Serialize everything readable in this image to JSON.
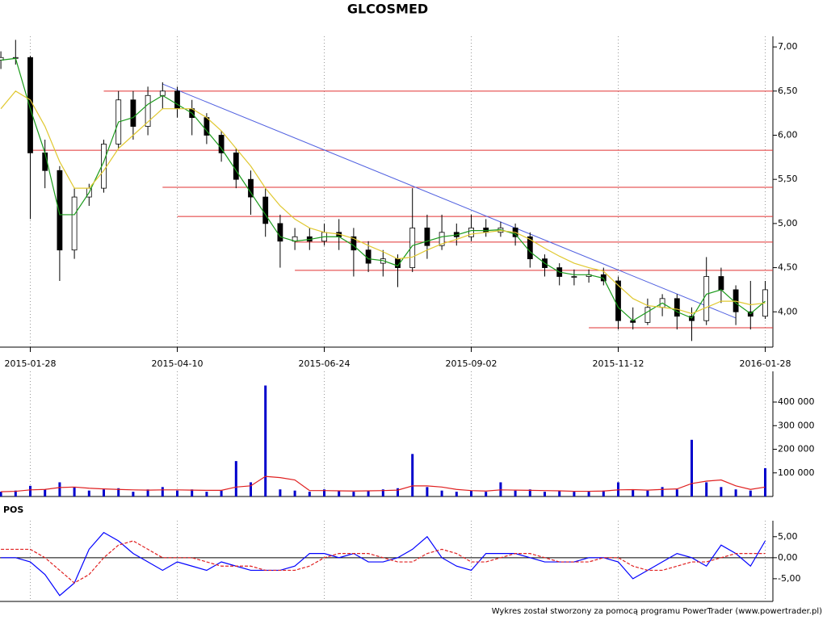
{
  "chart_data": [
    {
      "type": "candlestick",
      "title": "GLCOSMED",
      "categories": [
        null,
        null,
        "2015-01-28",
        null,
        null,
        null,
        null,
        null,
        null,
        null,
        null,
        null,
        "2015-04-10",
        null,
        null,
        null,
        null,
        null,
        null,
        null,
        null,
        null,
        "2015-06-24",
        null,
        null,
        null,
        null,
        null,
        null,
        null,
        null,
        null,
        "2015-09-02",
        null,
        null,
        null,
        null,
        null,
        null,
        null,
        null,
        null,
        "2015-11-12",
        null,
        null,
        null,
        null,
        null,
        null,
        null,
        null,
        null,
        "2016-01-28"
      ],
      "open": [
        6.85,
        6.88,
        6.88,
        5.8,
        5.6,
        4.7,
        5.3,
        5.4,
        5.9,
        6.4,
        6.1,
        6.45,
        6.5,
        6.3,
        6.2,
        6.0,
        5.8,
        5.5,
        5.3,
        5.0,
        4.8,
        4.85,
        4.8,
        4.9,
        4.85,
        4.7,
        4.55,
        4.6,
        4.5,
        4.95,
        4.75,
        4.9,
        4.85,
        4.95,
        4.9,
        4.95,
        4.85,
        4.6,
        4.5,
        4.4,
        4.4,
        4.42,
        4.35,
        3.9,
        3.88,
        4.05,
        4.15,
        3.95,
        3.9,
        4.4,
        4.25,
        4.0,
        3.95
      ],
      "high": [
        6.95,
        7.08,
        6.9,
        5.95,
        5.65,
        5.4,
        5.45,
        5.95,
        6.5,
        6.5,
        6.55,
        6.6,
        6.55,
        6.4,
        6.25,
        6.05,
        5.85,
        5.6,
        5.4,
        5.1,
        4.95,
        4.95,
        5.0,
        5.05,
        4.95,
        4.8,
        4.7,
        4.65,
        5.4,
        5.1,
        5.1,
        5.0,
        5.1,
        5.05,
        5.02,
        5.0,
        4.9,
        4.65,
        4.55,
        4.48,
        4.48,
        4.5,
        4.4,
        4.05,
        4.15,
        4.2,
        4.2,
        4.05,
        4.62,
        4.5,
        4.3,
        4.35,
        4.35
      ],
      "low": [
        6.75,
        6.8,
        5.05,
        5.4,
        4.35,
        4.6,
        5.2,
        5.35,
        5.85,
        5.95,
        6.0,
        6.3,
        6.2,
        6.0,
        5.9,
        5.7,
        5.4,
        5.1,
        4.85,
        4.5,
        4.7,
        4.7,
        4.75,
        4.7,
        4.4,
        4.45,
        4.4,
        4.28,
        4.45,
        4.6,
        4.7,
        4.75,
        4.8,
        4.85,
        4.85,
        4.75,
        4.5,
        4.4,
        4.3,
        4.3,
        4.33,
        4.3,
        3.8,
        3.8,
        3.85,
        3.95,
        3.8,
        3.67,
        3.85,
        4.1,
        3.85,
        3.8,
        3.92
      ],
      "close": [
        6.88,
        6.88,
        5.8,
        5.6,
        4.7,
        5.3,
        5.4,
        5.9,
        6.4,
        6.1,
        6.45,
        6.5,
        6.3,
        6.2,
        6.0,
        5.8,
        5.5,
        5.3,
        5.0,
        4.8,
        4.85,
        4.8,
        4.9,
        4.85,
        4.7,
        4.55,
        4.6,
        4.5,
        4.95,
        4.75,
        4.9,
        4.85,
        4.95,
        4.9,
        4.95,
        4.85,
        4.6,
        4.5,
        4.4,
        4.4,
        4.42,
        4.35,
        3.9,
        3.88,
        4.05,
        4.15,
        3.95,
        3.9,
        4.4,
        4.25,
        4.0,
        3.95,
        4.25
      ],
      "overlays": [
        {
          "color": "#1a9a1a",
          "values": [
            6.85,
            6.87,
            6.3,
            5.8,
            5.1,
            5.1,
            5.35,
            5.7,
            6.15,
            6.2,
            6.35,
            6.45,
            6.35,
            6.25,
            6.05,
            5.85,
            5.6,
            5.35,
            5.1,
            4.85,
            4.8,
            4.82,
            4.85,
            4.85,
            4.75,
            4.6,
            4.58,
            4.52,
            4.75,
            4.8,
            4.85,
            4.87,
            4.92,
            4.92,
            4.93,
            4.88,
            4.68,
            4.55,
            4.45,
            4.42,
            4.42,
            4.38,
            4.05,
            3.9,
            4.0,
            4.1,
            4.0,
            3.93,
            4.2,
            4.25,
            4.1,
            3.98,
            4.12
          ]
        },
        {
          "color": "#e0c830",
          "values": [
            6.3,
            6.5,
            6.4,
            6.1,
            5.7,
            5.4,
            5.4,
            5.6,
            5.85,
            6.0,
            6.15,
            6.3,
            6.3,
            6.3,
            6.2,
            6.05,
            5.85,
            5.65,
            5.4,
            5.2,
            5.05,
            4.95,
            4.9,
            4.88,
            4.83,
            4.75,
            4.68,
            4.6,
            4.62,
            4.7,
            4.77,
            4.82,
            4.88,
            4.9,
            4.92,
            4.9,
            4.82,
            4.72,
            4.63,
            4.55,
            4.5,
            4.46,
            4.3,
            4.15,
            4.07,
            4.05,
            4.03,
            3.98,
            4.05,
            4.12,
            4.12,
            4.08,
            4.1
          ]
        }
      ],
      "levels": [
        {
          "value": 6.5,
          "from": 7,
          "color": "#e03030"
        },
        {
          "value": 5.83,
          "from": 2,
          "color": "#e03030"
        },
        {
          "value": 5.41,
          "from": 11,
          "color": "#e03030"
        },
        {
          "value": 5.08,
          "from": 12,
          "color": "#e03030"
        },
        {
          "value": 4.79,
          "from": 20,
          "color": "#e03030"
        },
        {
          "value": 4.47,
          "from": 20,
          "color": "#e03030"
        },
        {
          "value": 3.82,
          "from": 40,
          "color": "#e03030"
        }
      ],
      "trendline": {
        "from": [
          11,
          6.58
        ],
        "to": [
          50,
          3.93
        ],
        "color": "#5060e0"
      },
      "ylim": [
        3.6,
        7.12
      ],
      "yticks": [
        {
          "value": 4,
          "label": "4,00"
        },
        {
          "value": 4.5,
          "label": "4,50"
        },
        {
          "value": 5,
          "label": "5,00"
        },
        {
          "value": 5.5,
          "label": "5,50"
        },
        {
          "value": 6,
          "label": "6,00"
        },
        {
          "value": 6.5,
          "label": "6,50"
        },
        {
          "value": 7,
          "label": "7,00"
        }
      ],
      "grid": true
    },
    {
      "type": "bar",
      "color": "#0000cc",
      "values": [
        20000,
        25000,
        45000,
        30000,
        60000,
        40000,
        25000,
        30000,
        35000,
        20000,
        30000,
        40000,
        25000,
        30000,
        20000,
        25000,
        150000,
        60000,
        470000,
        30000,
        25000,
        20000,
        30000,
        25000,
        20000,
        25000,
        30000,
        35000,
        180000,
        40000,
        25000,
        20000,
        25000,
        20000,
        60000,
        25000,
        30000,
        20000,
        25000,
        20000,
        20000,
        25000,
        60000,
        30000,
        25000,
        40000,
        30000,
        240000,
        60000,
        40000,
        30000,
        25000,
        120000
      ],
      "average": {
        "color": "#e02020",
        "values": [
          20000,
          22000,
          28000,
          30000,
          38000,
          40000,
          35000,
          32000,
          30000,
          28000,
          27000,
          28000,
          28000,
          27000,
          26000,
          26000,
          40000,
          45000,
          85000,
          80000,
          70000,
          25000,
          25000,
          24000,
          23000,
          24000,
          25000,
          27000,
          45000,
          45000,
          40000,
          30000,
          25000,
          23000,
          28000,
          27000,
          26000,
          25000,
          24000,
          22000,
          22000,
          23000,
          28000,
          29000,
          27000,
          30000,
          32000,
          55000,
          65000,
          70000,
          45000,
          30000,
          40000
        ]
      },
      "ylim": [
        0,
        530000
      ],
      "yticks": [
        {
          "value": 100000,
          "label": "100 000"
        },
        {
          "value": 200000,
          "label": "200 000"
        },
        {
          "value": 300000,
          "label": "300 000"
        },
        {
          "value": 400000,
          "label": "400 000"
        }
      ]
    },
    {
      "type": "line",
      "title": "POS",
      "series": [
        {
          "color": "#0000ff",
          "values": [
            0,
            0,
            -1,
            -4,
            -9,
            -6,
            2,
            6,
            4,
            1,
            -1,
            -3,
            -1,
            -2,
            -3,
            -1,
            -2,
            -3,
            -3,
            -3,
            -2,
            1,
            1,
            0,
            1,
            -1,
            -1,
            0,
            2,
            5,
            0,
            -2,
            -3,
            1,
            1,
            1,
            0,
            -1,
            -1,
            -1,
            0,
            0,
            -1,
            -5,
            -3,
            -1,
            1,
            0,
            -2,
            3,
            1,
            -2,
            4
          ]
        },
        {
          "color": "#e02020",
          "dashed": true,
          "values": [
            2,
            2,
            2,
            0,
            -3,
            -6,
            -4,
            0,
            3,
            4,
            2,
            0,
            0,
            0,
            -1,
            -2,
            -2,
            -2,
            -3,
            -3,
            -3,
            -2,
            0,
            1,
            1,
            1,
            0,
            -1,
            -1,
            1,
            2,
            1,
            -1,
            -1,
            0,
            1,
            1,
            0,
            -1,
            -1,
            -1,
            0,
            0,
            -2,
            -3,
            -3,
            -2,
            -1,
            -1,
            0,
            1,
            1,
            1
          ]
        }
      ],
      "zero_line": true,
      "ylim": [
        -10.4,
        8.8
      ],
      "yticks": [
        {
          "value": -5,
          "label": "-5,00"
        },
        {
          "value": 0,
          "label": "0,00"
        },
        {
          "value": 5,
          "label": "5,00"
        }
      ]
    }
  ],
  "footer": "Wykres został stworzony za pomocą programu PowerTrader (www.powertrader.pl)"
}
